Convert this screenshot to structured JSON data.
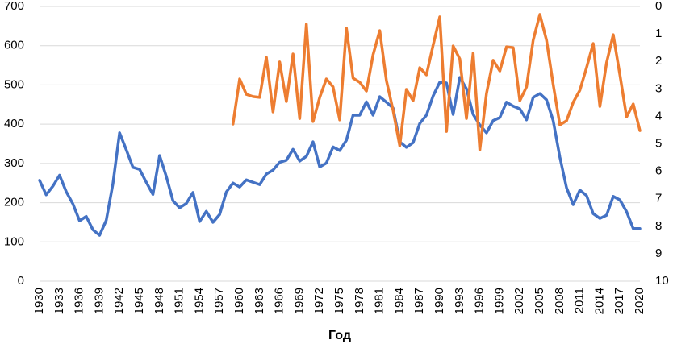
{
  "chart_data": {
    "type": "line",
    "x_label": "Год",
    "x": [
      1930,
      1931,
      1932,
      1933,
      1934,
      1935,
      1936,
      1937,
      1938,
      1939,
      1940,
      1941,
      1942,
      1943,
      1944,
      1945,
      1946,
      1947,
      1948,
      1949,
      1950,
      1951,
      1952,
      1953,
      1954,
      1955,
      1956,
      1957,
      1958,
      1959,
      1960,
      1961,
      1962,
      1963,
      1964,
      1965,
      1966,
      1967,
      1968,
      1969,
      1970,
      1971,
      1972,
      1973,
      1974,
      1975,
      1976,
      1977,
      1978,
      1979,
      1980,
      1981,
      1982,
      1983,
      1984,
      1985,
      1986,
      1987,
      1988,
      1989,
      1990,
      1991,
      1992,
      1993,
      1994,
      1995,
      1996,
      1997,
      1998,
      1999,
      2000,
      2001,
      2002,
      2003,
      2004,
      2005,
      2006,
      2007,
      2008,
      2009,
      2010,
      2011,
      2012,
      2013,
      2014,
      2015,
      2016,
      2017,
      2018,
      2019,
      2020
    ],
    "series": [
      {
        "color": "#4472c4",
        "axis": "y",
        "values": [
          257,
          220,
          242,
          270,
          228,
          197,
          154,
          165,
          131,
          117,
          155,
          248,
          378,
          335,
          290,
          285,
          252,
          221,
          320,
          267,
          205,
          187,
          198,
          226,
          152,
          178,
          150,
          170,
          227,
          250,
          240,
          258,
          252,
          246,
          273,
          283,
          303,
          308,
          336,
          306,
          318,
          355,
          291,
          301,
          342,
          333,
          359,
          423,
          423,
          457,
          423,
          470,
          456,
          441,
          355,
          341,
          353,
          402,
          423,
          472,
          507,
          505,
          425,
          519,
          490,
          425,
          398,
          378,
          409,
          417,
          456,
          446,
          439,
          411,
          468,
          478,
          462,
          409,
          316,
          238,
          195,
          232,
          218,
          172,
          160,
          168,
          216,
          207,
          177,
          134,
          134
        ]
      },
      {
        "color": "#ed7d31",
        "axis": "y2",
        "values": [
          null,
          null,
          null,
          null,
          null,
          null,
          null,
          null,
          null,
          null,
          null,
          null,
          null,
          null,
          null,
          null,
          null,
          null,
          null,
          null,
          null,
          null,
          null,
          null,
          null,
          null,
          null,
          null,
          null,
          4.28,
          2.64,
          3.2,
          3.28,
          3.31,
          1.85,
          3.84,
          2.02,
          3.46,
          1.73,
          4.08,
          0.65,
          4.19,
          3.31,
          2.64,
          2.93,
          4.13,
          0.79,
          2.61,
          2.76,
          3.08,
          1.76,
          0.88,
          2.7,
          3.78,
          5.07,
          3.02,
          3.43,
          2.23,
          2.49,
          1.41,
          0.38,
          4.55,
          1.44,
          1.91,
          4.08,
          1.7,
          5.22,
          3.17,
          1.96,
          2.35,
          1.47,
          1.5,
          3.43,
          2.93,
          1.23,
          0.29,
          1.23,
          2.84,
          4.31,
          4.16,
          3.49,
          3.05,
          2.23,
          1.35,
          3.64,
          2.05,
          1.03,
          2.49,
          4.02,
          3.55,
          4.52
        ]
      }
    ],
    "xlim": [
      1930,
      2020
    ],
    "xticks": [
      1930,
      1933,
      1936,
      1939,
      1942,
      1945,
      1948,
      1951,
      1954,
      1957,
      1960,
      1963,
      1966,
      1969,
      1972,
      1975,
      1978,
      1981,
      1984,
      1987,
      1990,
      1993,
      1996,
      1999,
      2002,
      2005,
      2008,
      2011,
      2014,
      2017,
      2020
    ],
    "ylim": [
      0,
      700
    ],
    "yticks": [
      0,
      100,
      200,
      300,
      400,
      500,
      600,
      700
    ],
    "y2lim": [
      10,
      0
    ],
    "y2ticks": [
      0,
      1,
      2,
      3,
      4,
      5,
      6,
      7,
      8,
      9,
      10
    ],
    "grid": true
  }
}
